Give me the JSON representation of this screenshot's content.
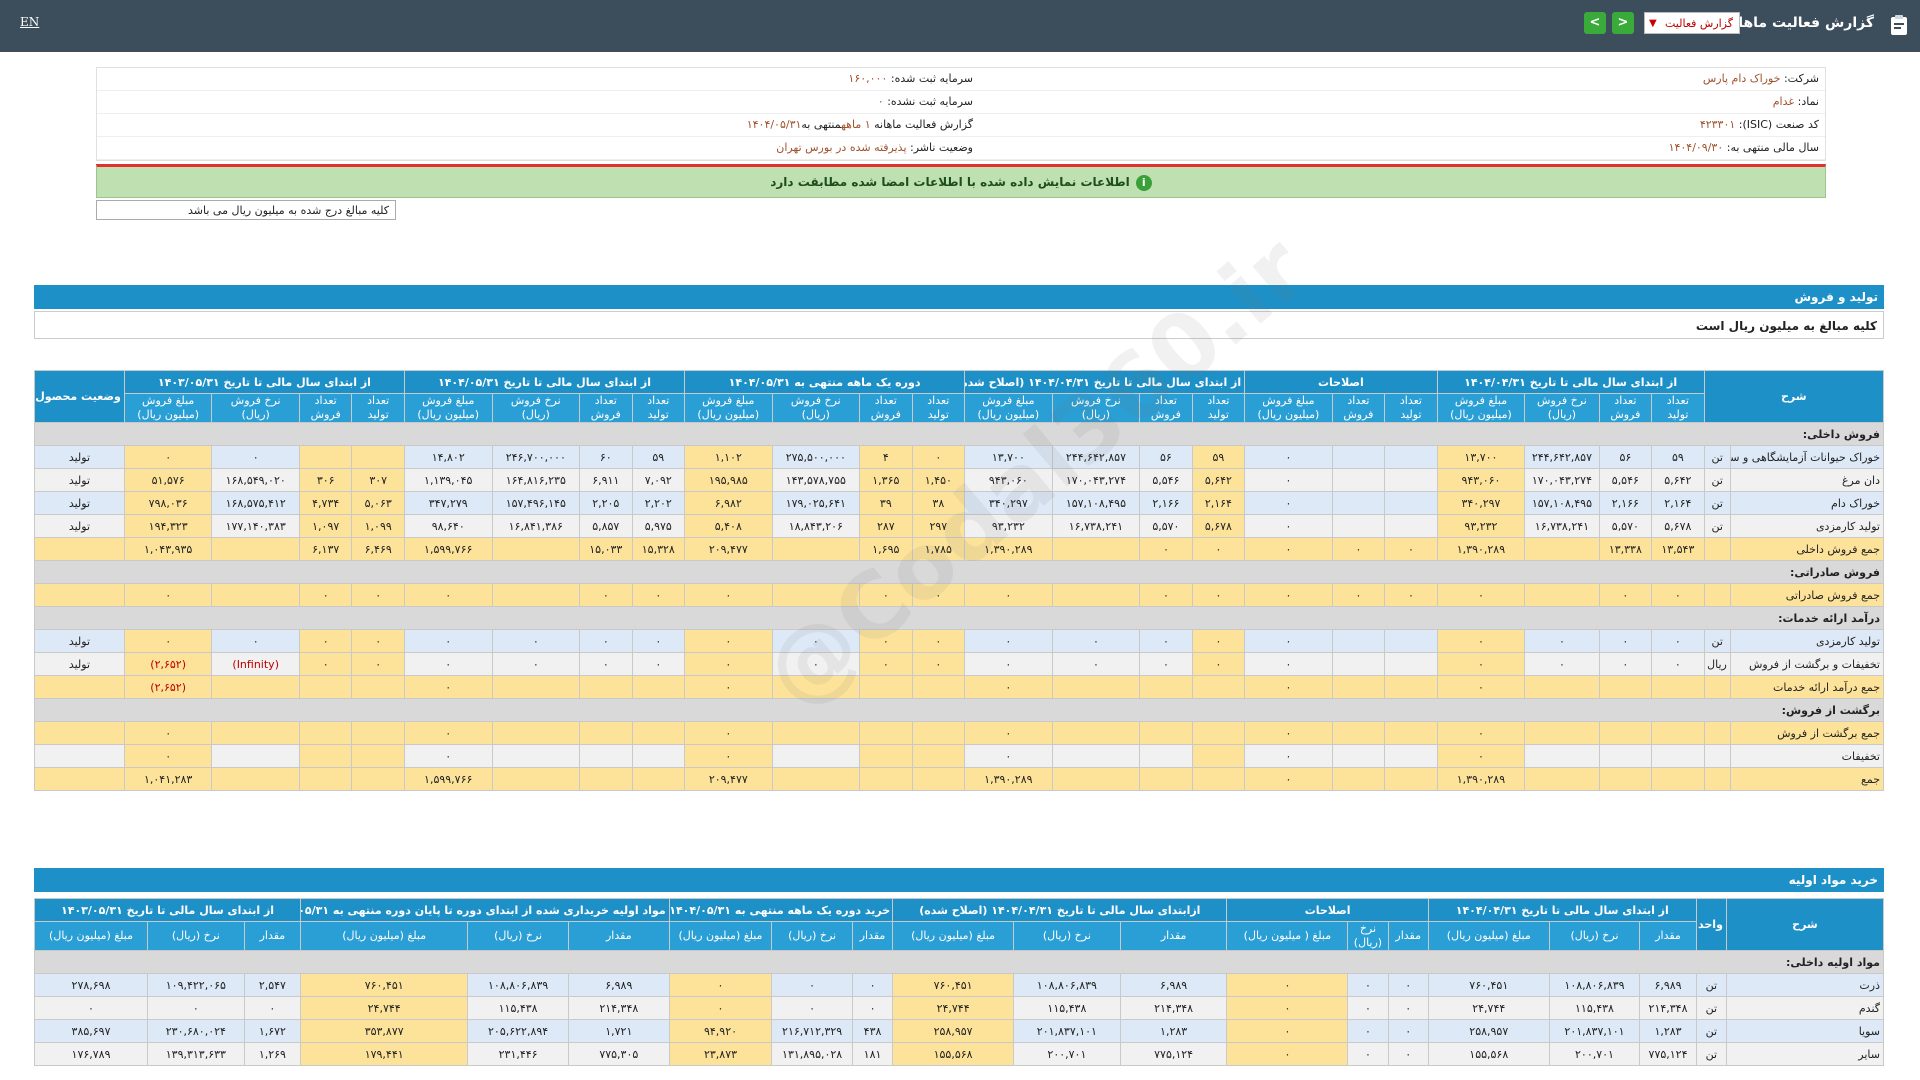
{
  "topbar": {
    "lang": "EN",
    "title": "گزارش فعالیت ماهانه",
    "select": "گزارش فعالیت",
    "prev": "<",
    "next": ">"
  },
  "info": {
    "company_label": "شرکت:",
    "company": "خوراک دام پارس",
    "symbol_label": "نماد:",
    "symbol": "غدام",
    "isic_label": "کد صنعت (ISIC):",
    "isic": "۴۲۳۳۰۱",
    "fy_label": "سال مالی منتهی به:",
    "fy": "۱۴۰۴/۰۹/۳۰",
    "cap_reg_label": "سرمایه ثبت شده:",
    "cap_reg": "۱۶۰,۰۰۰",
    "cap_unreg_label": "سرمایه ثبت نشده:",
    "cap_unreg": "۰",
    "report_label": "گزارش فعالیت ماهانه",
    "report_val": "۱ ماهه",
    "report_end": "منتهی به",
    "report_date": "۱۴۰۴/۰۵/۳۱",
    "status_label": "وضعیت ناشر:",
    "status": "پذیرفته شده در بورس تهران"
  },
  "banner": "اطلاعات نمایش داده شده با اطلاعات امضا شده مطابقت دارد",
  "note": "کلیه مبالغ درج شده به میلیون ریال می باشد",
  "watermark": "@Codal360.ir",
  "sales": {
    "title": "تولید و فروش",
    "subtitle": "کلیه مبالغ به میلیون ریال است",
    "groups": [
      "شرح",
      "از ابتدای سال مالی تا تاریخ ۱۴۰۴/۰۴/۳۱",
      "اصلاحات",
      "از ابتدای سال مالی تا تاریخ ۱۴۰۴/۰۴/۳۱ (اصلاح شده)",
      "دوره یک ماهه منتهی به ۱۴۰۴/۰۵/۳۱",
      "از ابتدای سال مالی تا تاریخ ۱۴۰۴/۰۵/۳۱",
      "از ابتدای سال مالی تا تاریخ ۱۴۰۳/۰۵/۳۱",
      "وضعیت محصول-واحد"
    ],
    "cols": [
      "نام محصول",
      "واحد",
      "تعداد تولید",
      "تعداد فروش",
      "نرخ فروش (ریال)",
      "مبلغ فروش (میلیون ریال)",
      "تعداد تولید",
      "تعداد فروش",
      "مبلغ فروش (میلیون ریال)",
      "تعداد تولید",
      "تعداد فروش",
      "نرخ فروش (ریال)",
      "مبلغ فروش (میلیون ریال)",
      "تعداد تولید",
      "تعداد فروش",
      "نرخ فروش (ریال)",
      "مبلغ فروش (میلیون ریال)",
      "تعداد تولید",
      "تعداد فروش",
      "نرخ فروش (ریال)",
      "مبلغ فروش (میلیون ریال)",
      "تعداد تولید",
      "تعداد فروش",
      "نرخ فروش (ریال)",
      "مبلغ فروش (میلیون ریال)",
      ""
    ],
    "rows": [
      {
        "t": "grp",
        "c": [
          "فروش داخلی:"
        ]
      },
      {
        "t": "bl",
        "c": [
          "خوراک حیوانات آزمایشگاهی و سایر",
          "تن",
          "۵۹",
          "۵۶",
          "۲۴۴,۶۴۲,۸۵۷",
          "۱۳,۷۰۰",
          "",
          "",
          "۰",
          "۵۹",
          "۵۶",
          "۲۴۴,۶۴۲,۸۵۷",
          "۱۳,۷۰۰",
          "۰",
          "۴",
          "۲۷۵,۵۰۰,۰۰۰",
          "۱,۱۰۲",
          "۵۹",
          "۶۰",
          "۲۴۶,۷۰۰,۰۰۰",
          "۱۴,۸۰۲",
          "",
          "",
          "۰",
          "۰",
          "تولید"
        ]
      },
      {
        "t": "wt",
        "c": [
          "دان مرغ",
          "تن",
          "۵,۶۴۲",
          "۵,۵۴۶",
          "۱۷۰,۰۴۳,۲۷۴",
          "۹۴۳,۰۶۰",
          "",
          "",
          "۰",
          "۵,۶۴۲",
          "۵,۵۴۶",
          "۱۷۰,۰۴۳,۲۷۴",
          "۹۴۳,۰۶۰",
          "۱,۴۵۰",
          "۱,۳۶۵",
          "۱۴۳,۵۷۸,۷۵۵",
          "۱۹۵,۹۸۵",
          "۷,۰۹۲",
          "۶,۹۱۱",
          "۱۶۴,۸۱۶,۲۳۵",
          "۱,۱۳۹,۰۴۵",
          "۳۰۷",
          "۳۰۶",
          "۱۶۸,۵۴۹,۰۲۰",
          "۵۱,۵۷۶",
          "تولید"
        ]
      },
      {
        "t": "bl",
        "c": [
          "خوراک دام",
          "تن",
          "۲,۱۶۴",
          "۲,۱۶۶",
          "۱۵۷,۱۰۸,۴۹۵",
          "۳۴۰,۲۹۷",
          "",
          "",
          "۰",
          "۲,۱۶۴",
          "۲,۱۶۶",
          "۱۵۷,۱۰۸,۴۹۵",
          "۳۴۰,۲۹۷",
          "۳۸",
          "۳۹",
          "۱۷۹,۰۲۵,۶۴۱",
          "۶,۹۸۲",
          "۲,۲۰۲",
          "۲,۲۰۵",
          "۱۵۷,۴۹۶,۱۴۵",
          "۳۴۷,۲۷۹",
          "۵,۰۶۳",
          "۴,۷۳۴",
          "۱۶۸,۵۷۵,۴۱۲",
          "۷۹۸,۰۳۶",
          "تولید"
        ]
      },
      {
        "t": "wt",
        "c": [
          "تولید کارمزدی",
          "تن",
          "۵,۶۷۸",
          "۵,۵۷۰",
          "۱۶,۷۳۸,۲۴۱",
          "۹۳,۲۳۲",
          "",
          "",
          "۰",
          "۵,۶۷۸",
          "۵,۵۷۰",
          "۱۶,۷۳۸,۲۴۱",
          "۹۳,۲۳۲",
          "۲۹۷",
          "۲۸۷",
          "۱۸,۸۴۳,۲۰۶",
          "۵,۴۰۸",
          "۵,۹۷۵",
          "۵,۸۵۷",
          "۱۶,۸۴۱,۳۸۶",
          "۹۸,۶۴۰",
          "۱,۰۹۹",
          "۱,۰۹۷",
          "۱۷۷,۱۴۰,۳۸۳",
          "۱۹۴,۳۲۳",
          "تولید"
        ]
      },
      {
        "t": "yl",
        "c": [
          "جمع فروش داخلی",
          "",
          "۱۳,۵۴۳",
          "۱۳,۳۳۸",
          "",
          "۱,۳۹۰,۲۸۹",
          "۰",
          "۰",
          "۰",
          "۰",
          "۰",
          "",
          "۱,۳۹۰,۲۸۹",
          "۱,۷۸۵",
          "۱,۶۹۵",
          "",
          "۲۰۹,۴۷۷",
          "۱۵,۳۲۸",
          "۱۵,۰۳۳",
          "",
          "۱,۵۹۹,۷۶۶",
          "۶,۴۶۹",
          "۶,۱۳۷",
          "",
          "۱,۰۴۳,۹۳۵",
          ""
        ]
      },
      {
        "t": "grp",
        "c": [
          "فروش صادراتی:"
        ]
      },
      {
        "t": "yl",
        "c": [
          "جمع فروش صادراتی",
          "",
          "۰",
          "۰",
          "",
          "۰",
          "۰",
          "۰",
          "۰",
          "۰",
          "۰",
          "",
          "۰",
          "۰",
          "۰",
          "",
          "۰",
          "۰",
          "۰",
          "",
          "۰",
          "۰",
          "۰",
          "",
          "۰",
          ""
        ]
      },
      {
        "t": "grp",
        "c": [
          "درآمد ارائه خدمات:"
        ]
      },
      {
        "t": "bl",
        "c": [
          "تولید کارمزدی",
          "تن",
          "۰",
          "۰",
          "۰",
          "۰",
          "",
          "",
          "۰",
          "۰",
          "۰",
          "۰",
          "۰",
          "۰",
          "۰",
          "۰",
          "۰",
          "۰",
          "۰",
          "۰",
          "۰",
          "۰",
          "۰",
          "۰",
          "۰",
          "تولید"
        ]
      },
      {
        "t": "wt",
        "c": [
          "تخفیفات و برگشت از فروش",
          "ریال",
          "۰",
          "۰",
          "۰",
          "۰",
          "",
          "",
          "۰",
          "۰",
          "۰",
          "۰",
          "۰",
          "۰",
          "۰",
          "۰",
          "۰",
          "۰",
          "۰",
          "۰",
          "۰",
          "۰",
          "۰",
          "(Infinity)",
          "(۲,۶۵۲)",
          "تولید"
        ]
      },
      {
        "t": "yl",
        "c": [
          "جمع درآمد ارائه خدمات",
          "",
          "",
          "",
          "",
          "۰",
          "",
          "",
          "۰",
          "",
          "",
          "",
          "۰",
          "",
          "",
          "",
          "۰",
          "",
          "",
          "",
          "۰",
          "",
          "",
          "",
          "(۲,۶۵۲)",
          ""
        ]
      },
      {
        "t": "grp",
        "c": [
          "برگشت از فروش:"
        ]
      },
      {
        "t": "yl",
        "c": [
          "جمع برگشت از فروش",
          "",
          "",
          "",
          "",
          "۰",
          "",
          "",
          "۰",
          "",
          "",
          "",
          "۰",
          "",
          "",
          "",
          "۰",
          "",
          "",
          "",
          "۰",
          "",
          "",
          "",
          "۰",
          ""
        ]
      },
      {
        "t": "wt",
        "c": [
          "تخفیفات",
          "",
          "",
          "",
          "",
          "۰",
          "",
          "",
          "۰",
          "",
          "",
          "",
          "۰",
          "",
          "",
          "",
          "۰",
          "",
          "",
          "",
          "۰",
          "",
          "",
          "",
          "۰",
          ""
        ]
      },
      {
        "t": "yl",
        "c": [
          "جمع",
          "",
          "",
          "",
          "",
          "۱,۳۹۰,۲۸۹",
          "",
          "",
          "۰",
          "",
          "",
          "",
          "۱,۳۹۰,۲۸۹",
          "",
          "",
          "",
          "۲۰۹,۴۷۷",
          "",
          "",
          "",
          "۱,۵۹۹,۷۶۶",
          "",
          "",
          "",
          "۱,۰۴۱,۲۸۳",
          ""
        ]
      }
    ]
  },
  "materials": {
    "title": "خرید مواد اولیه",
    "groups": [
      "شرح",
      "واحد",
      "از ابتدای سال مالی تا تاریخ ۱۴۰۴/۰۴/۳۱",
      "اصلاحات",
      "ازابتدای سال مالی تا تاریخ ۱۴۰۴/۰۴/۳۱ (اصلاح شده)",
      "خرید دوره یک ماهه منتهی به ۱۴۰۴/۰۵/۳۱",
      "مواد اولیه خریداری شده از ابتدای دوره تا پایان دوره منتهی به ۱۴۰۴/۰۵/۳۱",
      "از ابتدای سال مالی تا تاریخ ۱۴۰۳/۰۵/۳۱"
    ],
    "cols": [
      "",
      "",
      "مقدار",
      "نرخ (ریال)",
      "مبلغ (میلیون ریال)",
      "مقدار",
      "نرخ (ریال)",
      "مبلغ ( میلیون ریال)",
      "مقدار",
      "نرخ (ریال)",
      "مبلغ (میلیون ریال)",
      "مقدار",
      "نرخ (ریال)",
      "مبلغ (میلیون ریال)",
      "مقدار",
      "نرخ (ریال)",
      "مبلغ (میلیون ریال)",
      "مقدار",
      "نرخ (ریال)",
      "مبلغ (میلیون ریال)"
    ],
    "rows": [
      {
        "t": "grp",
        "c": [
          "مواد اولیه داخلی:"
        ]
      },
      {
        "t": "bl",
        "c": [
          "ذرت",
          "تن",
          "۶,۹۸۹",
          "۱۰۸,۸۰۶,۸۳۹",
          "۷۶۰,۴۵۱",
          "۰",
          "۰",
          "۰",
          "۶,۹۸۹",
          "۱۰۸,۸۰۶,۸۳۹",
          "۷۶۰,۴۵۱",
          "۰",
          "۰",
          "۰",
          "۶,۹۸۹",
          "۱۰۸,۸۰۶,۸۳۹",
          "۷۶۰,۴۵۱",
          "۲,۵۴۷",
          "۱۰۹,۴۲۲,۰۶۵",
          "۲۷۸,۶۹۸"
        ]
      },
      {
        "t": "wt",
        "c": [
          "گندم",
          "تن",
          "۲۱۴,۳۴۸",
          "۱۱۵,۴۳۸",
          "۲۴,۷۴۴",
          "۰",
          "۰",
          "۰",
          "۲۱۴,۳۴۸",
          "۱۱۵,۴۳۸",
          "۲۴,۷۴۴",
          "۰",
          "۰",
          "۰",
          "۲۱۴,۳۴۸",
          "۱۱۵,۴۳۸",
          "۲۴,۷۴۴",
          "۰",
          "۰",
          "۰"
        ]
      },
      {
        "t": "bl",
        "c": [
          "سویا",
          "تن",
          "۱,۲۸۳",
          "۲۰۱,۸۳۷,۱۰۱",
          "۲۵۸,۹۵۷",
          "۰",
          "۰",
          "۰",
          "۱,۲۸۳",
          "۲۰۱,۸۳۷,۱۰۱",
          "۲۵۸,۹۵۷",
          "۴۳۸",
          "۲۱۶,۷۱۲,۳۲۹",
          "۹۴,۹۲۰",
          "۱,۷۲۱",
          "۲۰۵,۶۲۲,۸۹۴",
          "۳۵۳,۸۷۷",
          "۱,۶۷۲",
          "۲۳۰,۶۸۰,۰۲۴",
          "۳۸۵,۶۹۷"
        ]
      },
      {
        "t": "wt",
        "c": [
          "سایر",
          "تن",
          "۷۷۵,۱۲۴",
          "۲۰۰,۷۰۱",
          "۱۵۵,۵۶۸",
          "۰",
          "۰",
          "۰",
          "۷۷۵,۱۲۴",
          "۲۰۰,۷۰۱",
          "۱۵۵,۵۶۸",
          "۱۸۱",
          "۱۳۱,۸۹۵,۰۲۸",
          "۲۳,۸۷۳",
          "۷۷۵,۳۰۵",
          "۲۳۱,۴۴۶",
          "۱۷۹,۴۴۱",
          "۱,۲۶۹",
          "۱۳۹,۳۱۳,۶۳۳",
          "۱۷۶,۷۸۹"
        ]
      }
    ]
  }
}
